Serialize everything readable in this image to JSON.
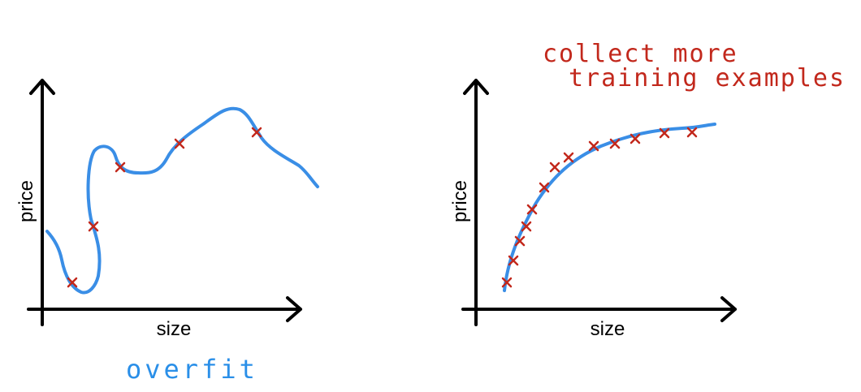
{
  "left_plot": {
    "y_label": "price",
    "x_label": "size",
    "caption": "overfit"
  },
  "right_plot": {
    "y_label": "price",
    "x_label": "size",
    "annotation": [
      "collect more",
      "training examples"
    ]
  }
}
